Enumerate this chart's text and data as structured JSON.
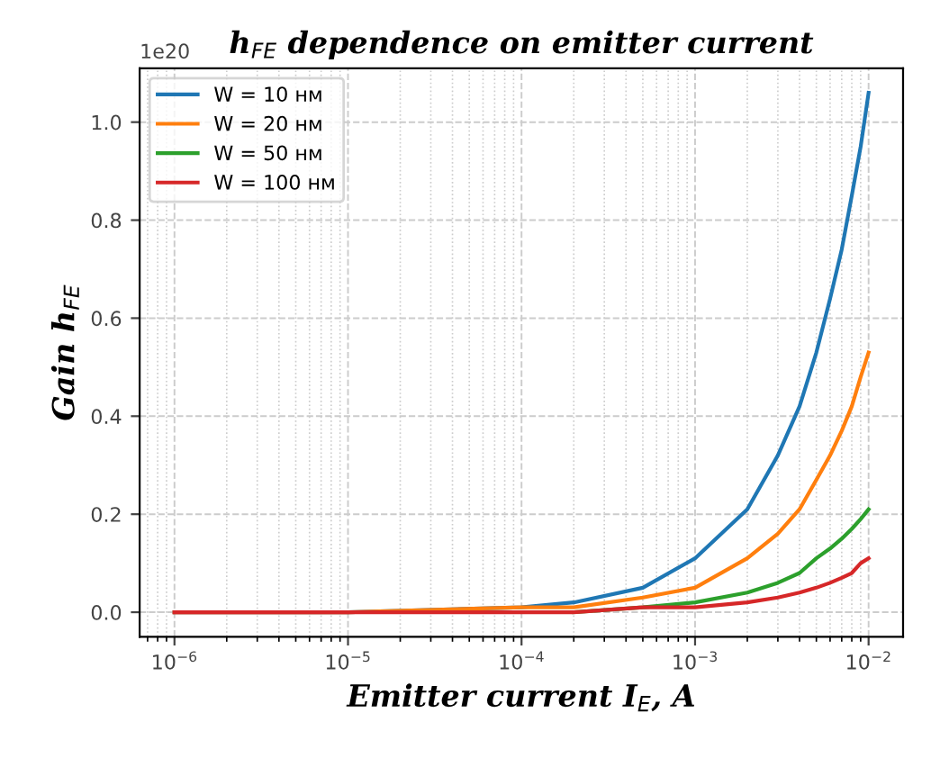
{
  "chart_data": {
    "type": "line",
    "title": "h$_{FE}$ dependence on emitter current",
    "xlabel": "Emitter current I$_{E}$, A",
    "ylabel": "Gain h$_{FE}$",
    "annotations": [
      "1e20"
    ],
    "x": [
      1e-06,
      1e-05,
      0.0001,
      0.0002,
      0.0005,
      0.001,
      0.002,
      0.003,
      0.004,
      0.005,
      0.006,
      0.007,
      0.008,
      0.009,
      0.01
    ],
    "series": [
      {
        "name": "W = 10 нм",
        "color": "#1f77b4",
        "values": [
          0.0,
          0.0,
          0.01,
          0.02,
          0.05,
          0.11,
          0.21,
          0.32,
          0.42,
          0.53,
          0.64,
          0.74,
          0.85,
          0.95,
          1.06
        ]
      },
      {
        "name": "W = 20 нм",
        "color": "#ff7f0e",
        "values": [
          0.0,
          0.0,
          0.01,
          0.01,
          0.03,
          0.05,
          0.11,
          0.16,
          0.21,
          0.27,
          0.32,
          0.37,
          0.42,
          0.48,
          0.53
        ]
      },
      {
        "name": "W = 50 нм",
        "color": "#2ca02c",
        "values": [
          null,
          null,
          null,
          0.0,
          0.01,
          0.02,
          0.04,
          0.06,
          0.08,
          0.11,
          0.13,
          0.15,
          0.17,
          0.19,
          0.21
        ]
      },
      {
        "name": "W = 100 нм",
        "color": "#d62728",
        "values": [
          0.0,
          0.0,
          0.0,
          0.0,
          0.01,
          0.01,
          0.02,
          0.03,
          0.04,
          0.05,
          0.06,
          0.07,
          0.08,
          0.1,
          0.11
        ]
      }
    ],
    "log": "x",
    "xlim": [
      6.3e-07,
      0.0158
    ],
    "xticks": [
      {
        "value": 1e-06,
        "label": "10$^{−6}$"
      },
      {
        "value": 1e-05,
        "label": "10$^{−5}$"
      },
      {
        "value": 0.0001,
        "label": "10$^{−4}$"
      },
      {
        "value": 0.001,
        "label": "10$^{−3}$"
      },
      {
        "value": 0.01,
        "label": "10$^{−2}$"
      }
    ],
    "ylim": [
      -0.05,
      1.11
    ],
    "yticks": [
      {
        "value": 0,
        "label": "0.0"
      },
      0.2,
      0.4,
      0.6,
      0.8,
      {
        "value": 1,
        "label": "1.0"
      }
    ],
    "grid": true,
    "legend": "top left",
    "line_style": "solid",
    "marker": "none"
  }
}
